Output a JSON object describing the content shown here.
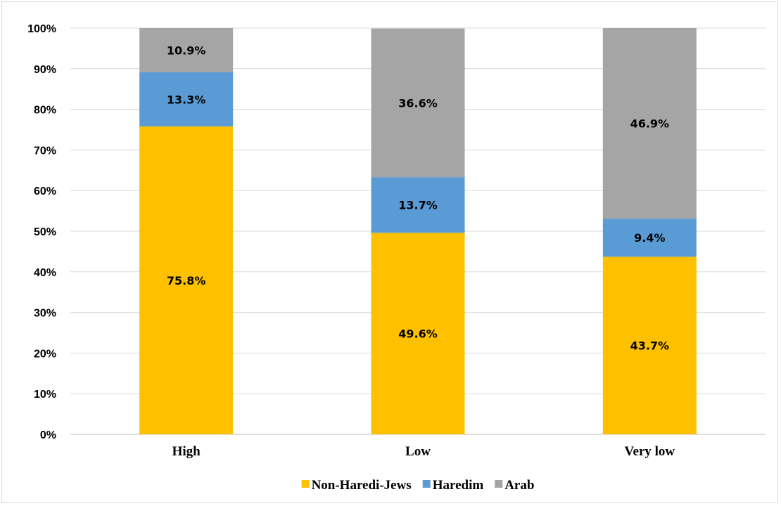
{
  "chart_data": {
    "type": "bar",
    "stacked": true,
    "categories": [
      "High",
      "Low",
      "Very low"
    ],
    "series": [
      {
        "name": "Non-Haredi-Jews",
        "color": "#FFC000",
        "values": [
          75.8,
          49.6,
          43.7
        ],
        "labels": [
          "75.8%",
          "49.6%",
          "43.7%"
        ]
      },
      {
        "name": "Haredim",
        "color": "#5B9BD5",
        "values": [
          13.3,
          13.7,
          9.4
        ],
        "labels": [
          "13.3%",
          "13.7%",
          "9.4%"
        ]
      },
      {
        "name": "Arab",
        "color": "#A5A5A5",
        "values": [
          10.9,
          36.6,
          46.9
        ],
        "labels": [
          "10.9%",
          "36.6%",
          "46.9%"
        ]
      }
    ],
    "y_ticks": [
      "0%",
      "10%",
      "20%",
      "30%",
      "40%",
      "50%",
      "60%",
      "70%",
      "80%",
      "90%",
      "100%"
    ],
    "ylim": [
      0,
      100
    ],
    "grid": true,
    "legend_position": "bottom"
  }
}
